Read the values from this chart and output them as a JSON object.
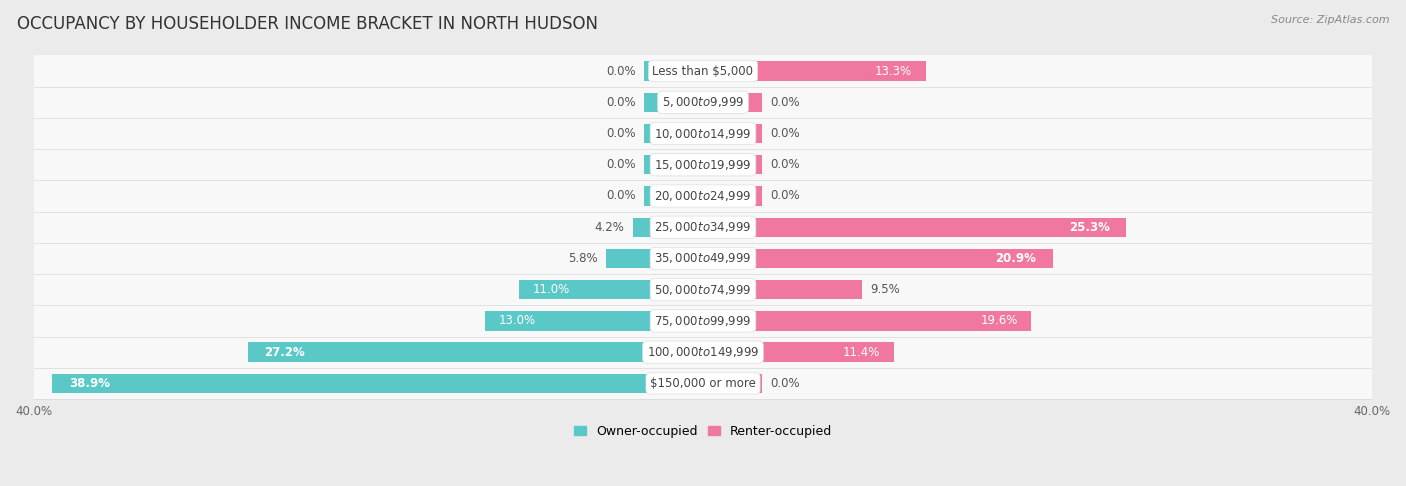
{
  "title": "OCCUPANCY BY HOUSEHOLDER INCOME BRACKET IN NORTH HUDSON",
  "source": "Source: ZipAtlas.com",
  "categories": [
    "Less than $5,000",
    "$5,000 to $9,999",
    "$10,000 to $14,999",
    "$15,000 to $19,999",
    "$20,000 to $24,999",
    "$25,000 to $34,999",
    "$35,000 to $49,999",
    "$50,000 to $74,999",
    "$75,000 to $99,999",
    "$100,000 to $149,999",
    "$150,000 or more"
  ],
  "owner_values": [
    0.0,
    0.0,
    0.0,
    0.0,
    0.0,
    4.2,
    5.8,
    11.0,
    13.0,
    27.2,
    38.9
  ],
  "renter_values": [
    13.3,
    0.0,
    0.0,
    0.0,
    0.0,
    25.3,
    20.9,
    9.5,
    19.6,
    11.4,
    0.0
  ],
  "owner_color": "#5bc8c8",
  "renter_color": "#f078a0",
  "background_color": "#ebebeb",
  "bar_background": "#f8f8f8",
  "row_sep_color": "#d8d8d8",
  "axis_limit": 40.0,
  "min_bar": 3.5,
  "bar_height": 0.62,
  "title_fontsize": 12,
  "label_fontsize": 8.5,
  "category_fontsize": 8.5,
  "source_fontsize": 8,
  "legend_fontsize": 9
}
